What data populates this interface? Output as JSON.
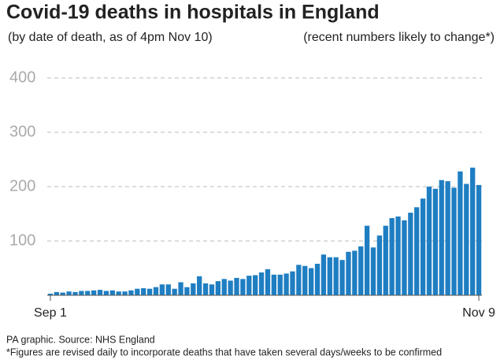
{
  "chart_data": {
    "type": "bar",
    "title": "Covid-19 deaths in hospitals in England",
    "subtitle": "(by date of death, as of 4pm Nov 10)",
    "note": "(recent numbers likely to change*)",
    "source": "PA graphic. Source: NHS England",
    "footnote": "*Figures are revised daily to incorporate deaths that have taken several days/weeks to be confirmed",
    "categories": [
      "Sep 1",
      null,
      null,
      null,
      null,
      null,
      null,
      null,
      null,
      null,
      null,
      null,
      null,
      null,
      null,
      null,
      null,
      null,
      null,
      null,
      null,
      null,
      null,
      null,
      null,
      null,
      null,
      null,
      null,
      null,
      null,
      null,
      null,
      null,
      null,
      null,
      null,
      null,
      null,
      null,
      null,
      null,
      null,
      null,
      null,
      null,
      null,
      null,
      null,
      null,
      null,
      null,
      null,
      null,
      null,
      null,
      null,
      null,
      null,
      null,
      null,
      null,
      null,
      null,
      null,
      null,
      null,
      null,
      null,
      "Nov 9"
    ],
    "values": [
      3,
      6,
      5,
      7,
      6,
      8,
      8,
      9,
      10,
      8,
      9,
      7,
      7,
      9,
      12,
      13,
      12,
      15,
      20,
      20,
      12,
      24,
      15,
      22,
      35,
      22,
      20,
      26,
      30,
      27,
      32,
      30,
      36,
      37,
      42,
      48,
      38,
      38,
      40,
      44,
      56,
      54,
      50,
      58,
      75,
      70,
      70,
      65,
      80,
      82,
      90,
      128,
      88,
      110,
      128,
      142,
      145,
      138,
      152,
      162,
      178,
      200,
      196,
      212,
      210,
      198,
      228,
      205,
      235,
      203
    ],
    "color": "#1f7ec2",
    "ylim": [
      0,
      400
    ],
    "yticks": [
      100,
      200,
      300,
      400
    ],
    "grid": true
  }
}
